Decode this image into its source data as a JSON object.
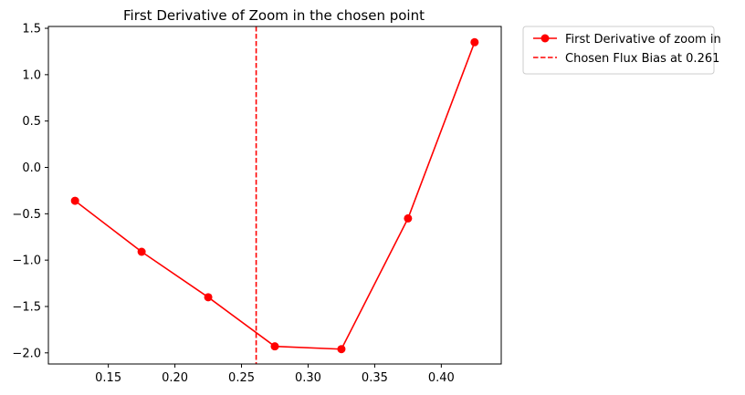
{
  "chart_data": {
    "type": "line",
    "title": "First Derivative of Zoom in the chosen point",
    "xlabel": "",
    "ylabel": "",
    "xlim": [
      0.105,
      0.445
    ],
    "ylim": [
      -2.12,
      1.52
    ],
    "xticks": [
      0.15,
      0.2,
      0.25,
      0.3,
      0.35,
      0.4
    ],
    "xtick_labels": [
      "0.15",
      "0.20",
      "0.25",
      "0.30",
      "0.35",
      "0.40"
    ],
    "yticks": [
      1.5,
      1.0,
      0.5,
      0.0,
      -0.5,
      -1.0,
      -1.5,
      -2.0
    ],
    "ytick_labels": [
      "1.5",
      "1.0",
      "0.5",
      "0.0",
      "−0.5",
      "−1.0",
      "−1.5",
      "−2.0"
    ],
    "grid": false,
    "legend_placement": "outside-top-right",
    "series": [
      {
        "name": "First Derivative of zoom in",
        "color": "#ff0000",
        "style": "solid-with-circle-markers",
        "x": [
          0.125,
          0.175,
          0.225,
          0.275,
          0.325,
          0.375,
          0.425
        ],
        "y": [
          -0.36,
          -0.91,
          -1.4,
          -1.93,
          -1.96,
          -0.55,
          1.35
        ]
      }
    ],
    "vlines": [
      {
        "name": "Chosen Flux Bias at 0.261",
        "x": 0.261,
        "color": "#ff0000",
        "style": "dashed"
      }
    ]
  }
}
